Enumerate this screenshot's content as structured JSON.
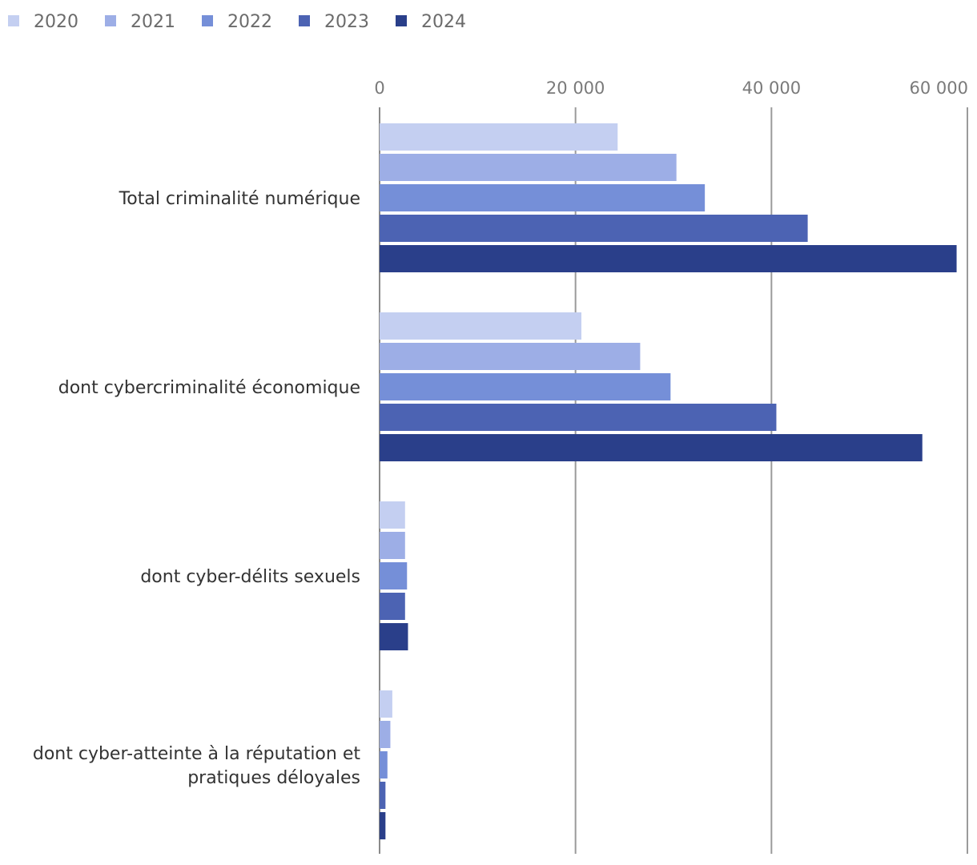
{
  "chart_data": {
    "type": "bar",
    "orientation": "horizontal",
    "title": "",
    "xlabel": "",
    "ylabel": "",
    "xlim": [
      0,
      60000
    ],
    "x_ticks": [
      0,
      20000,
      40000,
      60000
    ],
    "x_tick_labels": [
      "0",
      "20 000",
      "40 000",
      "60 000"
    ],
    "grid": true,
    "legend_position": "top-left",
    "categories": [
      [
        "Total criminalité numérique"
      ],
      [
        "dont cybercriminalité économique"
      ],
      [
        "dont cyber-délits sexuels"
      ],
      [
        "dont cyber-atteinte à la réputation et",
        "pratiques déloyales"
      ]
    ],
    "series": [
      {
        "name": "2020",
        "color": "#c4cff1",
        "values": [
          24300,
          20600,
          2600,
          1300
        ]
      },
      {
        "name": "2021",
        "color": "#9daee6",
        "values": [
          30300,
          26600,
          2600,
          1100
        ]
      },
      {
        "name": "2022",
        "color": "#758fd8",
        "values": [
          33200,
          29700,
          2800,
          800
        ]
      },
      {
        "name": "2023",
        "color": "#4c63b3",
        "values": [
          43700,
          40500,
          2600,
          600
        ]
      },
      {
        "name": "2024",
        "color": "#2a3f8a",
        "values": [
          58900,
          55400,
          2900,
          600
        ]
      }
    ]
  }
}
